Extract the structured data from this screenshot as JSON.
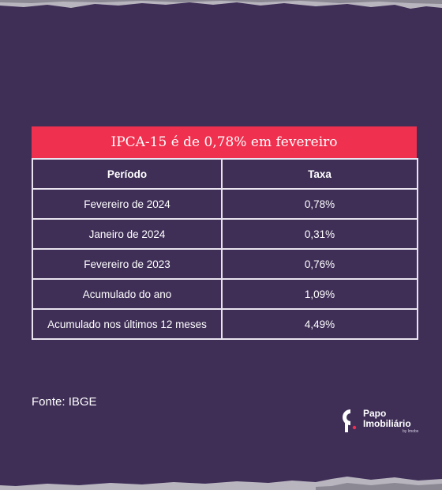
{
  "table": {
    "title": "IPCA-15 é de 0,78% em fevereiro",
    "headers": [
      "Período",
      "Taxa"
    ],
    "rows": [
      [
        "Fevereiro de 2024",
        "0,78%"
      ],
      [
        "Janeiro de 2024",
        "0,31%"
      ],
      [
        "Fevereiro de 2023",
        "0,76%"
      ],
      [
        "Acumulado do ano",
        "1,09%"
      ],
      [
        "Acumulado nos últimos 12 meses",
        "4,49%"
      ]
    ]
  },
  "source": "Fonte: IBGE",
  "logo": {
    "line1": "Papo",
    "line2": "Imobiliário",
    "tagline": "by Imobs",
    "icon": "papo-logo-icon"
  },
  "colors": {
    "background": "#3f2f57",
    "title_bar": "#f0304f",
    "table_border": "#e9e4ef",
    "text": "#ffffff"
  }
}
